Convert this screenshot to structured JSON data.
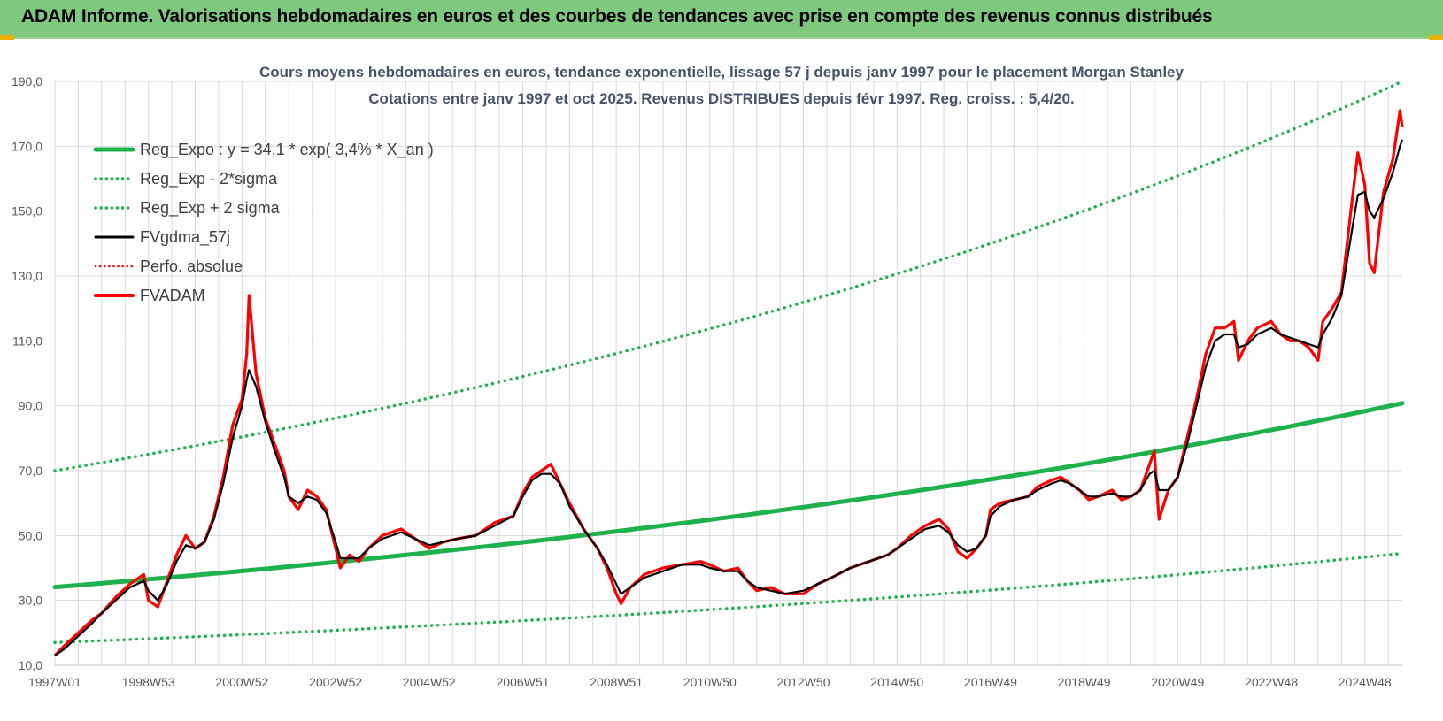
{
  "banner": {
    "title": "ADAM Informe. Valorisations hebdomadaires en euros et des courbes de tendances avec prise en compte des revenus connus distribués"
  },
  "colors": {
    "banner_bg": "#7fc97f",
    "trend_green": "#1fb14c",
    "smooth_black": "#000000",
    "price_red": "#ff0000",
    "grid": "#d9d9d9"
  },
  "chart_data": {
    "type": "line",
    "title": "Cours moyens hebdomadaires en euros, tendance exponentielle, lissage 57 j depuis janv 1997 pour le placement Morgan Stanley",
    "subtitle": "Cotations entre janv 1997 et oct 2025. Revenus DISTRIBUES depuis févr 1997. Reg. croiss. : 5,4/20.",
    "x_range": [
      1997.0,
      2025.8
    ],
    "ylim": [
      10,
      190
    ],
    "y_ticks": [
      "10,0",
      "30,0",
      "50,0",
      "70,0",
      "90,0",
      "110,0",
      "130,0",
      "150,0",
      "170,0",
      "190,0"
    ],
    "x_ticks": [
      {
        "label": "1997W01",
        "x": 1997.0
      },
      {
        "label": "1998W53",
        "x": 1999.0
      },
      {
        "label": "2000W52",
        "x": 2001.0
      },
      {
        "label": "2002W52",
        "x": 2003.0
      },
      {
        "label": "2004W52",
        "x": 2005.0
      },
      {
        "label": "2006W51",
        "x": 2007.0
      },
      {
        "label": "2008W51",
        "x": 2009.0
      },
      {
        "label": "2010W50",
        "x": 2011.0
      },
      {
        "label": "2012W50",
        "x": 2013.0
      },
      {
        "label": "2014W50",
        "x": 2015.0
      },
      {
        "label": "2016W49",
        "x": 2017.0
      },
      {
        "label": "2018W49",
        "x": 2019.0
      },
      {
        "label": "2020W49",
        "x": 2021.0
      },
      {
        "label": "2022W48",
        "x": 2023.0
      },
      {
        "label": "2024W48",
        "x": 2025.0
      }
    ],
    "legend": [
      {
        "label": "Reg_Expo : y = 34,1 * exp( 3,4% *  X_an )",
        "style": "solid-green"
      },
      {
        "label": "Reg_Exp - 2*sigma",
        "style": "dotted-green"
      },
      {
        "label": "Reg_Exp + 2 sigma",
        "style": "dotted-green"
      },
      {
        "label": "FVgdma_57j",
        "style": "solid-black"
      },
      {
        "label": "Perfo. absolue",
        "style": "dotted-red"
      },
      {
        "label": "FVADAM",
        "style": "solid-red"
      }
    ],
    "trend": {
      "a": 34.1,
      "rate": 0.034,
      "minus_2sigma": [
        [
          1997.0,
          17.0
        ],
        [
          2025.8,
          44.5
        ]
      ],
      "plus_2sigma": [
        [
          1997.0,
          70.0
        ],
        [
          2025.8,
          190.0
        ]
      ]
    },
    "series": [
      {
        "name": "FVADAM",
        "points": [
          [
            1997.0,
            13
          ],
          [
            1997.2,
            16
          ],
          [
            1997.5,
            20
          ],
          [
            1997.8,
            24
          ],
          [
            1998.0,
            26
          ],
          [
            1998.3,
            31
          ],
          [
            1998.6,
            35
          ],
          [
            1998.9,
            38
          ],
          [
            1999.0,
            30
          ],
          [
            1999.2,
            28
          ],
          [
            1999.4,
            36
          ],
          [
            1999.6,
            44
          ],
          [
            1999.8,
            50
          ],
          [
            2000.0,
            46
          ],
          [
            2000.2,
            48
          ],
          [
            2000.4,
            56
          ],
          [
            2000.6,
            68
          ],
          [
            2000.8,
            84
          ],
          [
            2001.0,
            92
          ],
          [
            2001.1,
            106
          ],
          [
            2001.15,
            124
          ],
          [
            2001.3,
            100
          ],
          [
            2001.5,
            86
          ],
          [
            2001.7,
            78
          ],
          [
            2001.9,
            70
          ],
          [
            2002.0,
            62
          ],
          [
            2002.2,
            58
          ],
          [
            2002.4,
            64
          ],
          [
            2002.6,
            62
          ],
          [
            2002.8,
            58
          ],
          [
            2003.0,
            46
          ],
          [
            2003.1,
            40
          ],
          [
            2003.3,
            44
          ],
          [
            2003.5,
            42
          ],
          [
            2003.7,
            46
          ],
          [
            2004.0,
            50
          ],
          [
            2004.4,
            52
          ],
          [
            2004.7,
            49
          ],
          [
            2005.0,
            46
          ],
          [
            2005.3,
            48
          ],
          [
            2005.6,
            49
          ],
          [
            2006.0,
            50
          ],
          [
            2006.4,
            54
          ],
          [
            2006.8,
            56
          ],
          [
            2007.0,
            63
          ],
          [
            2007.2,
            68
          ],
          [
            2007.4,
            70
          ],
          [
            2007.6,
            72
          ],
          [
            2007.8,
            66
          ],
          [
            2008.0,
            60
          ],
          [
            2008.3,
            52
          ],
          [
            2008.6,
            46
          ],
          [
            2008.8,
            40
          ],
          [
            2009.0,
            32
          ],
          [
            2009.1,
            29
          ],
          [
            2009.3,
            34
          ],
          [
            2009.6,
            38
          ],
          [
            2010.0,
            40
          ],
          [
            2010.4,
            41
          ],
          [
            2010.8,
            42
          ],
          [
            2011.0,
            41
          ],
          [
            2011.3,
            39
          ],
          [
            2011.6,
            40
          ],
          [
            2011.8,
            36
          ],
          [
            2012.0,
            33
          ],
          [
            2012.3,
            34
          ],
          [
            2012.6,
            32
          ],
          [
            2013.0,
            32
          ],
          [
            2013.3,
            35
          ],
          [
            2013.6,
            37
          ],
          [
            2014.0,
            40
          ],
          [
            2014.4,
            42
          ],
          [
            2014.8,
            44
          ],
          [
            2015.0,
            46
          ],
          [
            2015.3,
            50
          ],
          [
            2015.6,
            53
          ],
          [
            2015.9,
            55
          ],
          [
            2016.1,
            52
          ],
          [
            2016.3,
            45
          ],
          [
            2016.5,
            43
          ],
          [
            2016.7,
            46
          ],
          [
            2016.9,
            50
          ],
          [
            2017.0,
            58
          ],
          [
            2017.2,
            60
          ],
          [
            2017.5,
            61
          ],
          [
            2017.8,
            62
          ],
          [
            2018.0,
            65
          ],
          [
            2018.3,
            67
          ],
          [
            2018.5,
            68
          ],
          [
            2018.7,
            66
          ],
          [
            2018.9,
            64
          ],
          [
            2019.1,
            61
          ],
          [
            2019.3,
            62
          ],
          [
            2019.6,
            64
          ],
          [
            2019.8,
            61
          ],
          [
            2020.0,
            62
          ],
          [
            2020.2,
            64
          ],
          [
            2020.4,
            72
          ],
          [
            2020.5,
            76
          ],
          [
            2020.6,
            55
          ],
          [
            2020.8,
            64
          ],
          [
            2021.0,
            68
          ],
          [
            2021.2,
            80
          ],
          [
            2021.4,
            92
          ],
          [
            2021.6,
            106
          ],
          [
            2021.8,
            114
          ],
          [
            2022.0,
            114
          ],
          [
            2022.2,
            116
          ],
          [
            2022.3,
            104
          ],
          [
            2022.5,
            110
          ],
          [
            2022.7,
            114
          ],
          [
            2023.0,
            116
          ],
          [
            2023.2,
            112
          ],
          [
            2023.4,
            110
          ],
          [
            2023.6,
            110
          ],
          [
            2023.8,
            108
          ],
          [
            2024.0,
            104
          ],
          [
            2024.1,
            116
          ],
          [
            2024.3,
            120
          ],
          [
            2024.5,
            125
          ],
          [
            2024.7,
            150
          ],
          [
            2024.85,
            168
          ],
          [
            2025.0,
            158
          ],
          [
            2025.1,
            134
          ],
          [
            2025.2,
            131
          ],
          [
            2025.4,
            156
          ],
          [
            2025.6,
            166
          ],
          [
            2025.75,
            181
          ],
          [
            2025.8,
            176
          ]
        ]
      },
      {
        "name": "FVgdma_57j",
        "points": [
          [
            1997.0,
            13
          ],
          [
            1997.2,
            15
          ],
          [
            1997.5,
            19
          ],
          [
            1997.8,
            23
          ],
          [
            1998.0,
            26
          ],
          [
            1998.3,
            30
          ],
          [
            1998.6,
            34
          ],
          [
            1998.9,
            36
          ],
          [
            1999.0,
            33
          ],
          [
            1999.2,
            30
          ],
          [
            1999.4,
            35
          ],
          [
            1999.6,
            42
          ],
          [
            1999.8,
            47
          ],
          [
            2000.0,
            46
          ],
          [
            2000.2,
            48
          ],
          [
            2000.4,
            55
          ],
          [
            2000.6,
            66
          ],
          [
            2000.8,
            80
          ],
          [
            2001.0,
            90
          ],
          [
            2001.1,
            98
          ],
          [
            2001.15,
            101
          ],
          [
            2001.3,
            96
          ],
          [
            2001.5,
            85
          ],
          [
            2001.7,
            76
          ],
          [
            2001.9,
            68
          ],
          [
            2002.0,
            62
          ],
          [
            2002.2,
            60
          ],
          [
            2002.4,
            62
          ],
          [
            2002.6,
            61
          ],
          [
            2002.8,
            57
          ],
          [
            2003.0,
            48
          ],
          [
            2003.1,
            43
          ],
          [
            2003.3,
            43
          ],
          [
            2003.5,
            43
          ],
          [
            2003.7,
            46
          ],
          [
            2004.0,
            49
          ],
          [
            2004.4,
            51
          ],
          [
            2004.7,
            49
          ],
          [
            2005.0,
            47
          ],
          [
            2005.3,
            48
          ],
          [
            2005.6,
            49
          ],
          [
            2006.0,
            50
          ],
          [
            2006.4,
            53
          ],
          [
            2006.8,
            56
          ],
          [
            2007.0,
            62
          ],
          [
            2007.2,
            67
          ],
          [
            2007.4,
            69
          ],
          [
            2007.6,
            69
          ],
          [
            2007.8,
            66
          ],
          [
            2008.0,
            59
          ],
          [
            2008.3,
            52
          ],
          [
            2008.6,
            46
          ],
          [
            2008.8,
            41
          ],
          [
            2009.0,
            35
          ],
          [
            2009.1,
            32
          ],
          [
            2009.3,
            34
          ],
          [
            2009.6,
            37
          ],
          [
            2010.0,
            39
          ],
          [
            2010.4,
            41
          ],
          [
            2010.8,
            41
          ],
          [
            2011.0,
            40
          ],
          [
            2011.3,
            39
          ],
          [
            2011.6,
            39
          ],
          [
            2011.8,
            36
          ],
          [
            2012.0,
            34
          ],
          [
            2012.3,
            33
          ],
          [
            2012.6,
            32
          ],
          [
            2013.0,
            33
          ],
          [
            2013.3,
            35
          ],
          [
            2013.6,
            37
          ],
          [
            2014.0,
            40
          ],
          [
            2014.4,
            42
          ],
          [
            2014.8,
            44
          ],
          [
            2015.0,
            46
          ],
          [
            2015.3,
            49
          ],
          [
            2015.6,
            52
          ],
          [
            2015.9,
            53
          ],
          [
            2016.1,
            51
          ],
          [
            2016.3,
            47
          ],
          [
            2016.5,
            45
          ],
          [
            2016.7,
            46
          ],
          [
            2016.9,
            50
          ],
          [
            2017.0,
            56
          ],
          [
            2017.2,
            59
          ],
          [
            2017.5,
            61
          ],
          [
            2017.8,
            62
          ],
          [
            2018.0,
            64
          ],
          [
            2018.3,
            66
          ],
          [
            2018.5,
            67
          ],
          [
            2018.7,
            66
          ],
          [
            2018.9,
            64
          ],
          [
            2019.1,
            62
          ],
          [
            2019.3,
            62
          ],
          [
            2019.6,
            63
          ],
          [
            2019.8,
            62
          ],
          [
            2020.0,
            62
          ],
          [
            2020.2,
            64
          ],
          [
            2020.4,
            69
          ],
          [
            2020.5,
            70
          ],
          [
            2020.6,
            64
          ],
          [
            2020.8,
            64
          ],
          [
            2021.0,
            68
          ],
          [
            2021.2,
            78
          ],
          [
            2021.4,
            90
          ],
          [
            2021.6,
            102
          ],
          [
            2021.8,
            110
          ],
          [
            2022.0,
            112
          ],
          [
            2022.2,
            112
          ],
          [
            2022.3,
            108
          ],
          [
            2022.5,
            109
          ],
          [
            2022.7,
            112
          ],
          [
            2023.0,
            114
          ],
          [
            2023.2,
            112
          ],
          [
            2023.4,
            111
          ],
          [
            2023.6,
            110
          ],
          [
            2023.8,
            109
          ],
          [
            2024.0,
            108
          ],
          [
            2024.1,
            112
          ],
          [
            2024.3,
            117
          ],
          [
            2024.5,
            124
          ],
          [
            2024.7,
            142
          ],
          [
            2024.85,
            155
          ],
          [
            2025.0,
            156
          ],
          [
            2025.1,
            150
          ],
          [
            2025.2,
            148
          ],
          [
            2025.4,
            154
          ],
          [
            2025.6,
            162
          ],
          [
            2025.75,
            170
          ],
          [
            2025.8,
            172
          ]
        ]
      }
    ]
  }
}
